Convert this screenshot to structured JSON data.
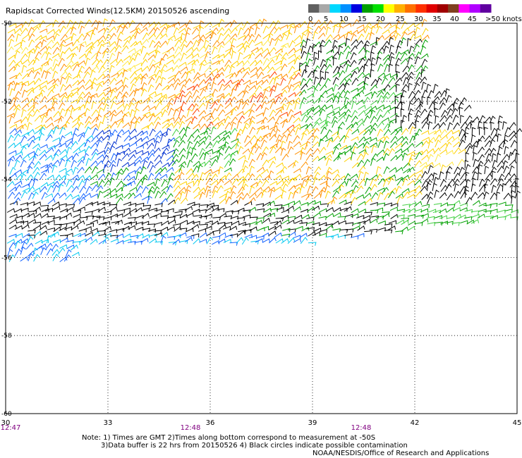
{
  "title": "Rapidscat Corrected Winds(12.5KM) 20150526 ascending",
  "legend": {
    "tick_labels": [
      "0",
      "5",
      "10",
      "15",
      "20",
      "25",
      "30",
      "35",
      "40",
      "45",
      ">50 knots"
    ],
    "colors": [
      "#606060",
      "#a8a8a8",
      "#00d8ff",
      "#0090ff",
      "#0000e0",
      "#00a000",
      "#00e000",
      "#ffff00",
      "#ffb000",
      "#ff7000",
      "#ff3000",
      "#e00000",
      "#a00000",
      "#804020",
      "#ff00ff",
      "#b000ff",
      "#6000a0"
    ]
  },
  "axes": {
    "lon_labels": [
      "30",
      "33",
      "36",
      "39",
      "42",
      "45"
    ],
    "lat_labels": [
      "-50",
      "-52",
      "-54",
      "-56",
      "-58",
      "-60"
    ],
    "times": [
      "12:47",
      "12:48",
      "12:48"
    ]
  },
  "notes": [
    "Note: 1) Times are GMT 2)Times along bottom correspond to measurement at -50S",
    "3)Data buffer is 22 hrs from 20150526 4) Black circles indicate possible contamination",
    "NOAA/NESDIS/Office of Research and Applications"
  ],
  "wind_color_palette": {
    "black": "#000000",
    "cyan": "#00c8f0",
    "blue": "#1060ff",
    "darkblue": "#0030d0",
    "green": "#00a000",
    "lightgreen": "#40d040",
    "yellow": "#ffd000",
    "lightyellow": "#ffe840",
    "orange": "#ff9000",
    "red": "#ff4000"
  }
}
